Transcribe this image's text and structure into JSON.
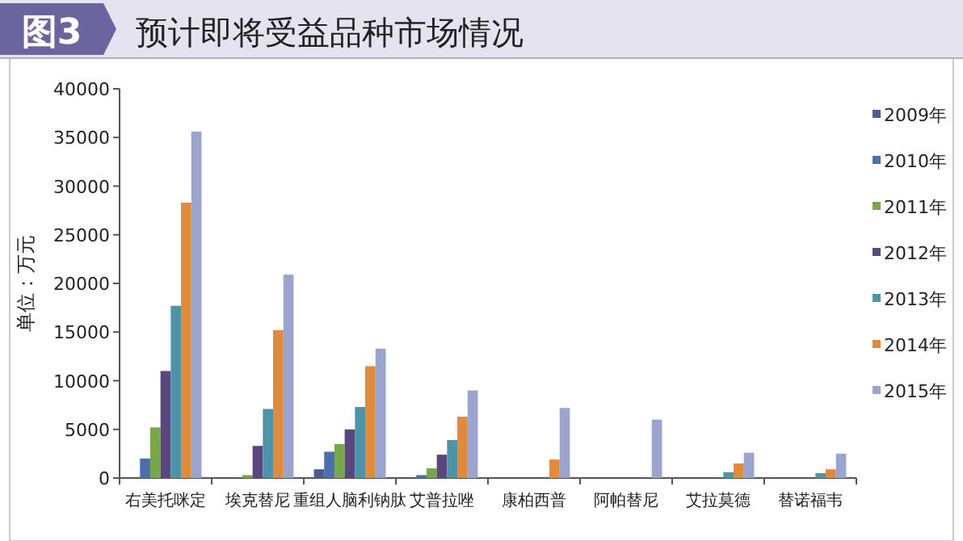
{
  "chart_data": {
    "type": "bar",
    "title": "预计即将受益品种市场情况",
    "annotations": [
      "图3"
    ],
    "ylabel": "单位：万元",
    "categories": [
      "右美托咪定",
      "埃克替尼",
      "重组人脑利钠肽",
      "艾普拉唑",
      "康柏西普",
      "阿帕替尼",
      "艾拉莫德",
      "替诺福韦"
    ],
    "series": [
      {
        "name": "2009年",
        "color": "#4a5d8f",
        "values": [
          null,
          null,
          900,
          null,
          null,
          null,
          null,
          null
        ]
      },
      {
        "name": "2010年",
        "color": "#4a6fae",
        "values": [
          2000,
          null,
          2700,
          300,
          null,
          null,
          null,
          null
        ]
      },
      {
        "name": "2011年",
        "color": "#77a844",
        "values": [
          5200,
          300,
          3500,
          1000,
          null,
          null,
          null,
          null
        ]
      },
      {
        "name": "2012年",
        "color": "#5c4680",
        "values": [
          11000,
          3300,
          5000,
          2400,
          null,
          null,
          null,
          null
        ]
      },
      {
        "name": "2013年",
        "color": "#4a95a8",
        "values": [
          17700,
          7100,
          7300,
          3900,
          null,
          null,
          600,
          500
        ]
      },
      {
        "name": "2014年",
        "color": "#e08a3a",
        "values": [
          28300,
          15200,
          11500,
          6300,
          1900,
          null,
          1500,
          900
        ]
      },
      {
        "name": "2015年",
        "color": "#9aa5cf",
        "values": [
          35600,
          20900,
          13300,
          9000,
          7200,
          6000,
          2600,
          2500
        ]
      }
    ],
    "ylim": [
      0,
      40000
    ],
    "yticks": [
      0,
      5000,
      10000,
      15000,
      20000,
      25000,
      30000,
      35000,
      40000
    ],
    "legend": "right",
    "grid": false
  }
}
